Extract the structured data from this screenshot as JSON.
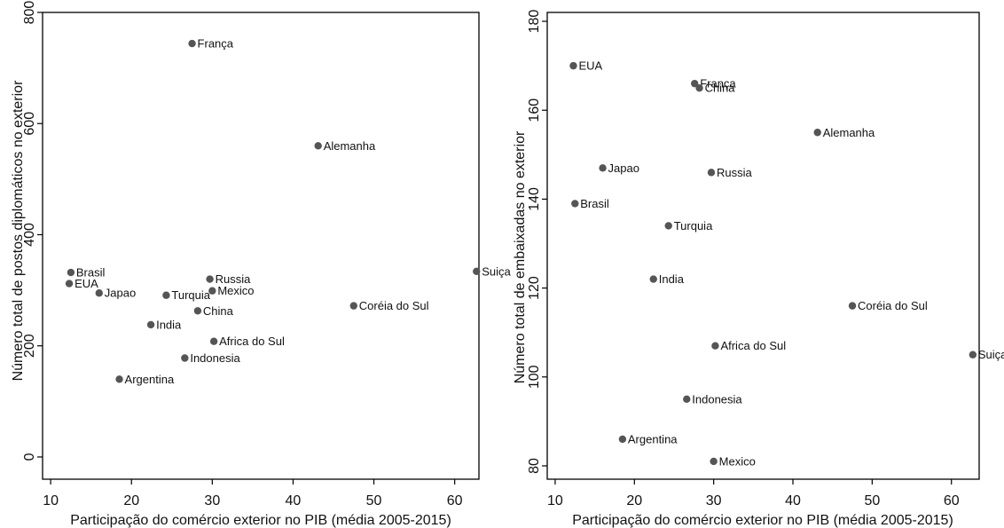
{
  "chart_data": [
    {
      "type": "scatter",
      "xlabel": "Participação do comércio exterior no PIB (média 2005-2015)",
      "ylabel": "Número total de postos diplomáticos no exterior",
      "xlim": [
        9,
        63
      ],
      "ylim": [
        -40,
        800
      ],
      "xticks": [
        "10",
        "20",
        "30",
        "40",
        "50",
        "60"
      ],
      "yticks": [
        "0",
        "200",
        "400",
        "600",
        "800"
      ],
      "grid": false,
      "marker_color": "#555555",
      "points": [
        {
          "label": "França",
          "x": 27.5,
          "y": 744
        },
        {
          "label": "Alemanha",
          "x": 43.1,
          "y": 560
        },
        {
          "label": "Suiça",
          "x": 62.7,
          "y": 334
        },
        {
          "label": "Brasil",
          "x": 12.5,
          "y": 332
        },
        {
          "label": "EUA",
          "x": 12.3,
          "y": 312
        },
        {
          "label": "Japao",
          "x": 16.0,
          "y": 295
        },
        {
          "label": "Russia",
          "x": 29.7,
          "y": 320
        },
        {
          "label": "Mexico",
          "x": 30.0,
          "y": 299
        },
        {
          "label": "Turquia",
          "x": 24.3,
          "y": 291
        },
        {
          "label": "China",
          "x": 28.2,
          "y": 263
        },
        {
          "label": "Coréia do Sul",
          "x": 47.5,
          "y": 272
        },
        {
          "label": "India",
          "x": 22.4,
          "y": 238
        },
        {
          "label": "Africa do Sul",
          "x": 30.2,
          "y": 208
        },
        {
          "label": "Indonesia",
          "x": 26.6,
          "y": 178
        },
        {
          "label": "Argentina",
          "x": 18.5,
          "y": 140
        }
      ]
    },
    {
      "type": "scatter",
      "xlabel": "Participação do comércio exterior no PIB (média 2005-2015)",
      "ylabel": "Número total de embaixadas no exterior",
      "xlim": [
        9,
        63.5
      ],
      "ylim": [
        77,
        182
      ],
      "xticks": [
        "10",
        "20",
        "30",
        "40",
        "50",
        "60"
      ],
      "yticks": [
        "80",
        "100",
        "120",
        "140",
        "160",
        "180"
      ],
      "grid": false,
      "marker_color": "#555555",
      "points": [
        {
          "label": "EUA",
          "x": 12.3,
          "y": 170
        },
        {
          "label": "França",
          "x": 27.6,
          "y": 166
        },
        {
          "label": "China",
          "x": 28.2,
          "y": 165
        },
        {
          "label": "Alemanha",
          "x": 43.1,
          "y": 155
        },
        {
          "label": "Japao",
          "x": 16.0,
          "y": 147
        },
        {
          "label": "Russia",
          "x": 29.7,
          "y": 146
        },
        {
          "label": "Brasil",
          "x": 12.5,
          "y": 139
        },
        {
          "label": "Turquia",
          "x": 24.3,
          "y": 134
        },
        {
          "label": "India",
          "x": 22.4,
          "y": 122
        },
        {
          "label": "Coréia do Sul",
          "x": 47.5,
          "y": 116
        },
        {
          "label": "Africa do Sul",
          "x": 30.2,
          "y": 107
        },
        {
          "label": "Suiça",
          "x": 62.7,
          "y": 105
        },
        {
          "label": "Indonesia",
          "x": 26.6,
          "y": 95
        },
        {
          "label": "Argentina",
          "x": 18.5,
          "y": 86
        },
        {
          "label": "Mexico",
          "x": 30.0,
          "y": 81
        }
      ]
    }
  ]
}
